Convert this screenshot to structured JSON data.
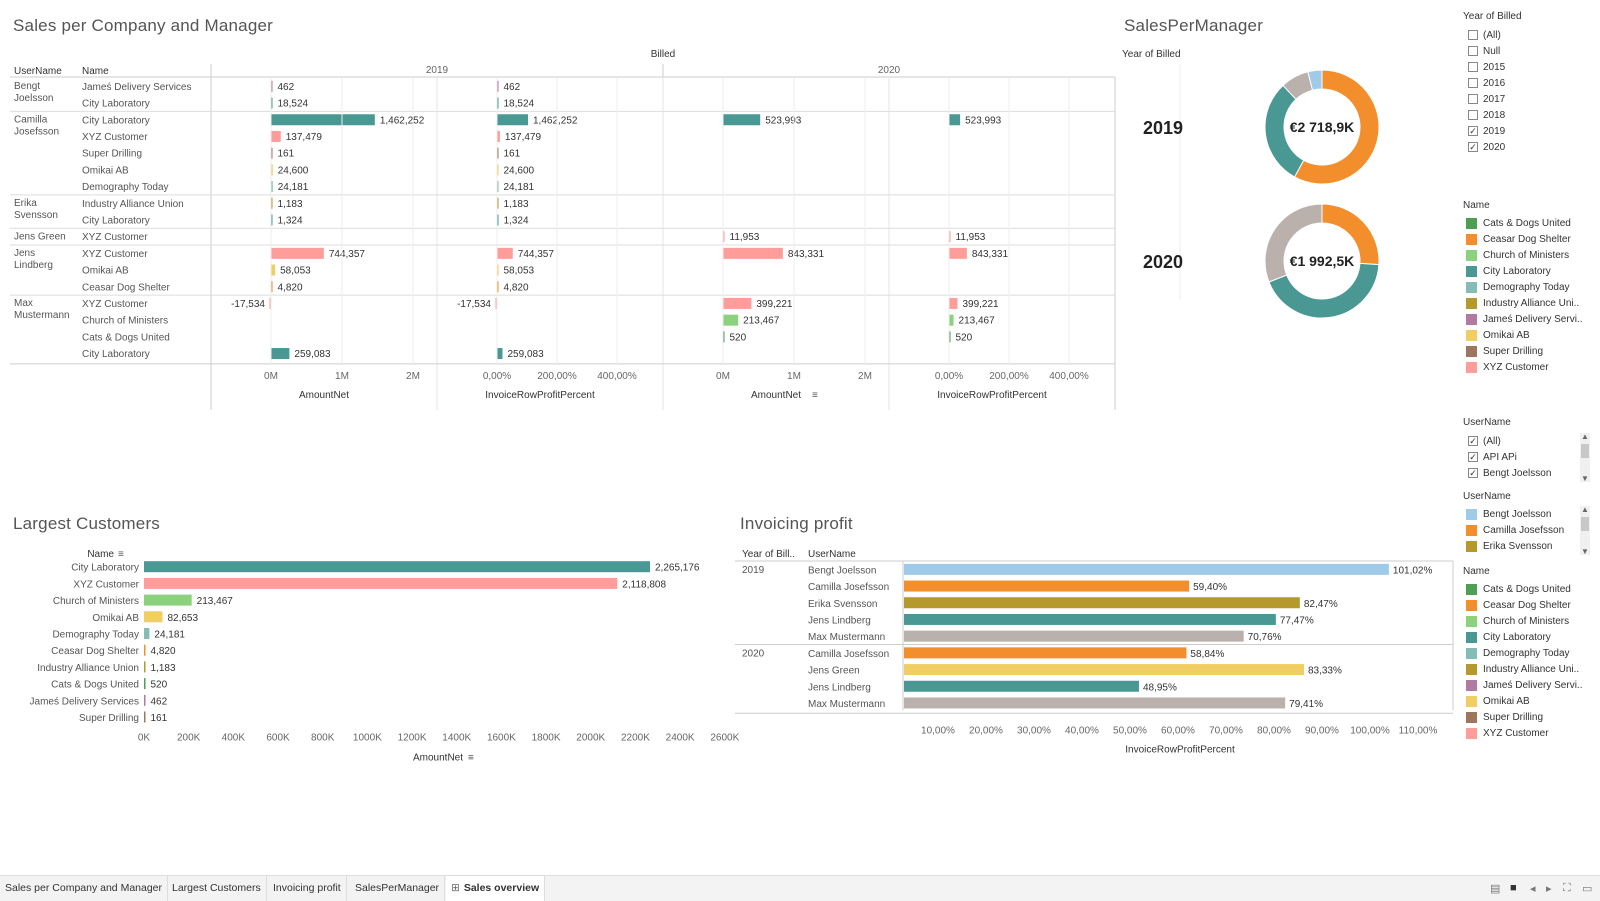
{
  "titles": {
    "sales_company_manager": "Sales per Company and Manager",
    "sales_per_manager": "SalesPerManager",
    "largest_customers": "Largest Customers",
    "invoicing_profit": "Invoicing profit"
  },
  "colors": {
    "Cats & Dogs United": "#4e9e54",
    "Ceasar Dog Shelter": "#f28e2b",
    "Church of Ministers": "#8cd17d",
    "City Laboratory": "#499894",
    "Demography Today": "#86bcb6",
    "Industry Alliance Union": "#b6992d",
    "James Delivery Services": "#b07aa1",
    "Omikai AB": "#f1ce63",
    "Super Drilling": "#9d7660",
    "XYZ Customer": "#ff9d9a",
    "Bengt Joelsson": "#a0cbe8",
    "Camilla Josefsson": "#f28e2b",
    "Erika Svensson": "#b6992d",
    "Jens Lindberg": "#499894",
    "Max Mustermann": "#bab0ac",
    "Jens Green": "#f1ce63"
  },
  "matrix": {
    "col_header_top": "Billed",
    "years": [
      "2019",
      "2020"
    ],
    "row_headers": [
      "UserName",
      "Name"
    ],
    "measure_labels": [
      "AmountNet",
      "InvoiceRowProfitPercent",
      "AmountNet",
      "InvoiceRowProfitPercent"
    ],
    "amount_ticks": [
      "0M",
      "1M",
      "2M"
    ],
    "pct_ticks": [
      "0,00%",
      "200,00%",
      "400,00%"
    ]
  },
  "chart_data": [
    {
      "type": "bar",
      "title": "Sales per Company and Manager",
      "rows": [
        {
          "user": "Bengt\nJoelsson",
          "name": "James Delivery Services",
          "display_name": "Jameś Delivery Services",
          "a2019": 462,
          "p2019": 462,
          "a2020": null,
          "p2020": null
        },
        {
          "user": "",
          "name": "City Laboratory",
          "display_name": "City Laboratory",
          "a2019": 18524,
          "p2019": 18524,
          "a2020": null,
          "p2020": null
        },
        {
          "user": "Camilla\nJosefsson",
          "name": "City Laboratory",
          "display_name": "City Laboratory",
          "a2019": 1462252,
          "p2019": 1462252,
          "a2020": 523993,
          "p2020": 523993
        },
        {
          "user": "",
          "name": "XYZ Customer",
          "display_name": "XYZ Customer",
          "a2019": 137479,
          "p2019": 137479,
          "a2020": null,
          "p2020": null
        },
        {
          "user": "",
          "name": "Super Drilling",
          "display_name": "Super Drilling",
          "a2019": 161,
          "p2019": 161,
          "a2020": null,
          "p2020": null
        },
        {
          "user": "",
          "name": "Omikai AB",
          "display_name": "Omikai AB",
          "a2019": 24600,
          "p2019": 24600,
          "a2020": null,
          "p2020": null
        },
        {
          "user": "",
          "name": "Demography Today",
          "display_name": "Demography Today",
          "a2019": 24181,
          "p2019": 24181,
          "a2020": null,
          "p2020": null
        },
        {
          "user": "Erika\nSvensson",
          "name": "Industry Alliance Union",
          "display_name": "Industry Alliance Union",
          "a2019": 1183,
          "p2019": 1183,
          "a2020": null,
          "p2020": null
        },
        {
          "user": "",
          "name": "City Laboratory",
          "display_name": "City Laboratory",
          "a2019": 1324,
          "p2019": 1324,
          "a2020": null,
          "p2020": null
        },
        {
          "user": "Jens Green",
          "name": "XYZ Customer",
          "display_name": "XYZ Customer",
          "a2019": null,
          "p2019": null,
          "a2020": 11953,
          "p2020": 11953
        },
        {
          "user": "Jens\nLindberg",
          "name": "XYZ Customer",
          "display_name": "XYZ Customer",
          "a2019": 744357,
          "p2019": 744357,
          "a2020": 843331,
          "p2020": 843331
        },
        {
          "user": "",
          "name": "Omikai AB",
          "display_name": "Omikai AB",
          "a2019": 58053,
          "p2019": 58053,
          "a2020": null,
          "p2020": null
        },
        {
          "user": "",
          "name": "Ceasar Dog Shelter",
          "display_name": "Ceasar Dog Shelter",
          "a2019": 4820,
          "p2019": 4820,
          "a2020": null,
          "p2020": null
        },
        {
          "user": "Max\nMustermann",
          "name": "XYZ Customer",
          "display_name": "XYZ Customer",
          "a2019": -17534,
          "p2019": -17534,
          "a2020": 399221,
          "p2020": 399221
        },
        {
          "user": "",
          "name": "Church of Ministers",
          "display_name": "Church of Ministers",
          "a2019": null,
          "p2019": null,
          "a2020": 213467,
          "p2020": 213467
        },
        {
          "user": "",
          "name": "Cats & Dogs United",
          "display_name": "Cats & Dogs United",
          "a2019": null,
          "p2019": null,
          "a2020": 520,
          "p2020": 520
        },
        {
          "user": "",
          "name": "City Laboratory",
          "display_name": "City Laboratory",
          "a2019": 259083,
          "p2019": 259083,
          "a2020": null,
          "p2020": null
        }
      ],
      "amount_range": [
        0,
        2500000
      ],
      "pct_range": [
        0,
        500
      ]
    },
    {
      "type": "pie",
      "title": "SalesPerManager",
      "subtitle": "Year of Billed",
      "donuts": [
        {
          "year": "2019",
          "center_label": "€2 718,9K",
          "slices": [
            {
              "name": "Camilla Josefsson",
              "value": 0.58
            },
            {
              "name": "Jens Lindberg",
              "value": 0.3
            },
            {
              "name": "Max Mustermann",
              "value": 0.08
            },
            {
              "name": "Bengt Joelsson",
              "value": 0.04
            }
          ]
        },
        {
          "year": "2020",
          "center_label": "€1 992,5K",
          "slices": [
            {
              "name": "Camilla Josefsson",
              "value": 0.26
            },
            {
              "name": "Jens Lindberg",
              "value": 0.43
            },
            {
              "name": "Max Mustermann",
              "value": 0.31
            }
          ]
        }
      ]
    },
    {
      "type": "bar",
      "title": "Largest Customers",
      "ylabel": "Name",
      "xlabel": "AmountNet",
      "categories": [
        "City Laboratory",
        "XYZ Customer",
        "Church of Ministers",
        "Omikai AB",
        "Demography Today",
        "Ceasar Dog Shelter",
        "Industry Alliance Union",
        "Cats & Dogs United",
        "James Delivery Services",
        "Super Drilling"
      ],
      "category_labels": [
        "City Laboratory",
        "XYZ Customer",
        "Church of Ministers",
        "Omikai AB",
        "Demography Today",
        "Ceasar Dog Shelter",
        "Industry Alliance Union",
        "Cats & Dogs United",
        "Jameś Delivery Services",
        "Super Drilling"
      ],
      "values": [
        2265176,
        2118808,
        213467,
        82653,
        24181,
        4820,
        1183,
        520,
        462,
        161
      ],
      "value_labels": [
        "2,265,176",
        "2,118,808",
        "213,467",
        "82,653",
        "24,181",
        "4,820",
        "1,183",
        "520",
        "462",
        "161"
      ],
      "ticks": [
        "0K",
        "200K",
        "400K",
        "600K",
        "800K",
        "1000K",
        "1200K",
        "1400K",
        "1600K",
        "1800K",
        "2000K",
        "2200K",
        "2400K",
        "2600K"
      ],
      "xlim": [
        0,
        2600000
      ]
    },
    {
      "type": "bar",
      "title": "Invoicing profit",
      "headers": [
        "Year of Bill..",
        "UserName"
      ],
      "xlabel": "InvoiceRowProfitPercent",
      "groups": [
        {
          "year": "2019",
          "rows": [
            {
              "user": "Bengt Joelsson",
              "value": 101.02,
              "label": "101,02%"
            },
            {
              "user": "Camilla Josefsson",
              "value": 59.4,
              "label": "59,40%"
            },
            {
              "user": "Erika Svensson",
              "value": 82.47,
              "label": "82,47%"
            },
            {
              "user": "Jens Lindberg",
              "value": 77.47,
              "label": "77,47%"
            },
            {
              "user": "Max Mustermann",
              "value": 70.76,
              "label": "70,76%"
            }
          ]
        },
        {
          "year": "2020",
          "rows": [
            {
              "user": "Camilla Josefsson",
              "value": 58.84,
              "label": "58,84%"
            },
            {
              "user": "Jens Green",
              "value": 83.33,
              "label": "83,33%"
            },
            {
              "user": "Jens Lindberg",
              "value": 48.95,
              "label": "48,95%"
            },
            {
              "user": "Max Mustermann",
              "value": 79.41,
              "label": "79,41%"
            }
          ]
        }
      ],
      "ticks": [
        "10,00%",
        "20,00%",
        "30,00%",
        "40,00%",
        "50,00%",
        "60,00%",
        "70,00%",
        "80,00%",
        "90,00%",
        "100,00%",
        "110,00%"
      ],
      "xlim": [
        0,
        115
      ]
    }
  ],
  "filters": {
    "year_filter": {
      "title": "Year of Billed",
      "items": [
        {
          "label": "(All)",
          "checked": false
        },
        {
          "label": "Null",
          "checked": false
        },
        {
          "label": "2015",
          "checked": false
        },
        {
          "label": "2016",
          "checked": false
        },
        {
          "label": "2017",
          "checked": false
        },
        {
          "label": "2018",
          "checked": false
        },
        {
          "label": "2019",
          "checked": true
        },
        {
          "label": "2020",
          "checked": true
        }
      ]
    },
    "name_legend_top": {
      "title": "Name",
      "items": [
        "Cats & Dogs United",
        "Ceasar Dog Shelter",
        "Church of Ministers",
        "City Laboratory",
        "Demography Today",
        "Industry Alliance Uni..",
        "Jameś Delivery Servi..",
        "Omikai AB",
        "Super Drilling",
        "XYZ Customer"
      ],
      "keys": [
        "Cats & Dogs United",
        "Ceasar Dog Shelter",
        "Church of Ministers",
        "City Laboratory",
        "Demography Today",
        "Industry Alliance Union",
        "James Delivery Services",
        "Omikai AB",
        "Super Drilling",
        "XYZ Customer"
      ]
    },
    "user_filter": {
      "title": "UserName",
      "items": [
        {
          "label": "(All)",
          "checked": true
        },
        {
          "label": "API APi",
          "checked": true
        },
        {
          "label": "Bengt Joelsson",
          "checked": true
        }
      ]
    },
    "user_legend": {
      "title": "UserName",
      "items": [
        "Bengt Joelsson",
        "Camilla Josefsson",
        "Erika Svensson"
      ]
    },
    "name_legend_bottom": {
      "title": "Name",
      "items": [
        "Cats & Dogs United",
        "Ceasar Dog Shelter",
        "Church of Ministers",
        "City Laboratory",
        "Demography Today",
        "Industry Alliance Uni..",
        "Jameś Delivery Servi..",
        "Omikai AB",
        "Super Drilling",
        "XYZ Customer"
      ],
      "keys": [
        "Cats & Dogs United",
        "Ceasar Dog Shelter",
        "Church of Ministers",
        "City Laboratory",
        "Demography Today",
        "Industry Alliance Union",
        "James Delivery Services",
        "Omikai AB",
        "Super Drilling",
        "XYZ Customer"
      ]
    }
  },
  "tabs": [
    {
      "label": "Sales per Company and Manager",
      "active": false
    },
    {
      "label": "Largest Customers",
      "active": false
    },
    {
      "label": "Invoicing profit",
      "active": false
    },
    {
      "label": "SalesPerManager",
      "active": false
    },
    {
      "label": "Sales overview",
      "active": true
    }
  ],
  "icons": {
    "tab_grid": "grid-icon",
    "toolbar": [
      "view-icon",
      "stop-icon",
      "prev-icon",
      "next-icon",
      "fullscreen-icon",
      "present-icon"
    ]
  }
}
